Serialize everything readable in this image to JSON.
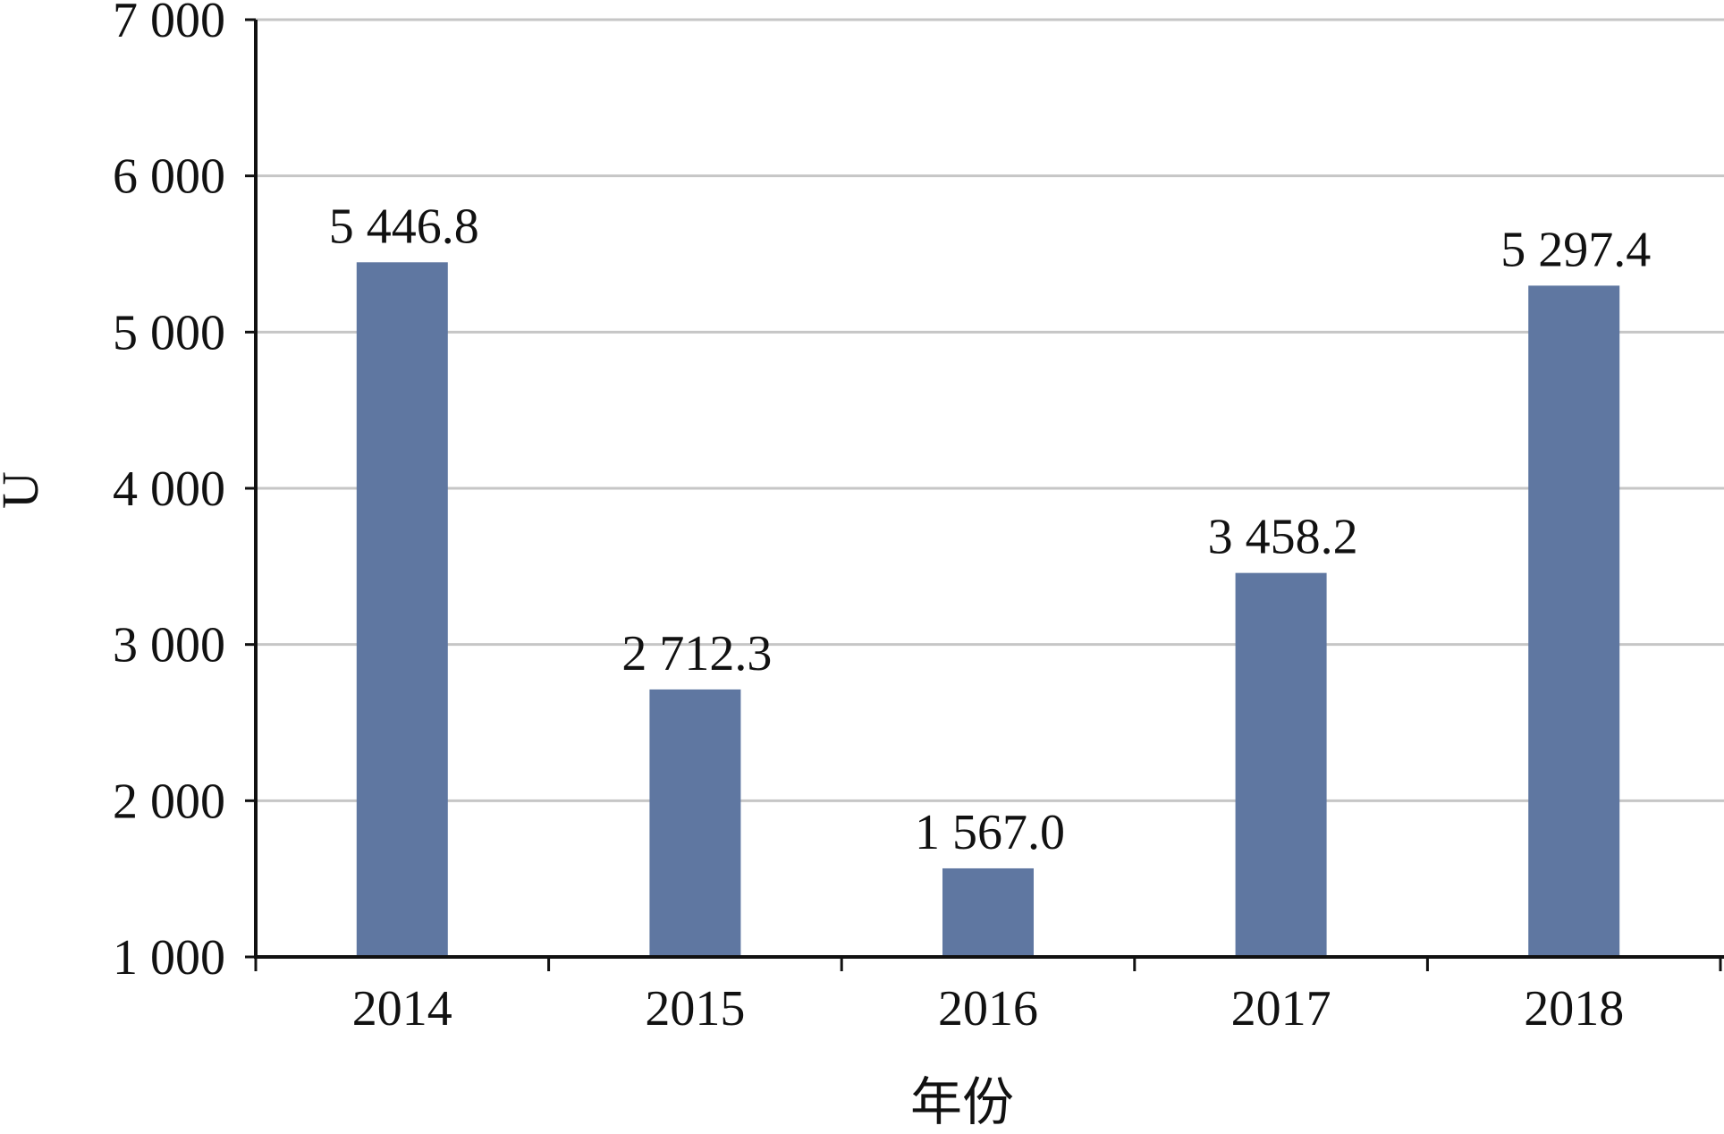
{
  "chart_data": {
    "type": "bar",
    "title": "",
    "xlabel": "年份",
    "ylabel": "U",
    "categories": [
      "2014",
      "2015",
      "2016",
      "2017",
      "2018"
    ],
    "values": [
      5446.8,
      2712.3,
      1567.0,
      3458.2,
      5297.4
    ],
    "data_labels": [
      "5 446.8",
      "2 712.3",
      "1 567.0",
      "3 458.2",
      "5 297.4"
    ],
    "ylim": [
      1000,
      7000
    ],
    "yticks": [
      1000,
      2000,
      3000,
      4000,
      5000,
      6000,
      7000
    ],
    "ytick_labels": [
      "1 000",
      "2 000",
      "3 000",
      "4 000",
      "5 000",
      "6 000",
      "7 000"
    ],
    "grid": true,
    "legend": "none",
    "colors": {
      "bar": "#5f77a1",
      "grid": "#c6c6c6",
      "axis": "#111111"
    }
  }
}
